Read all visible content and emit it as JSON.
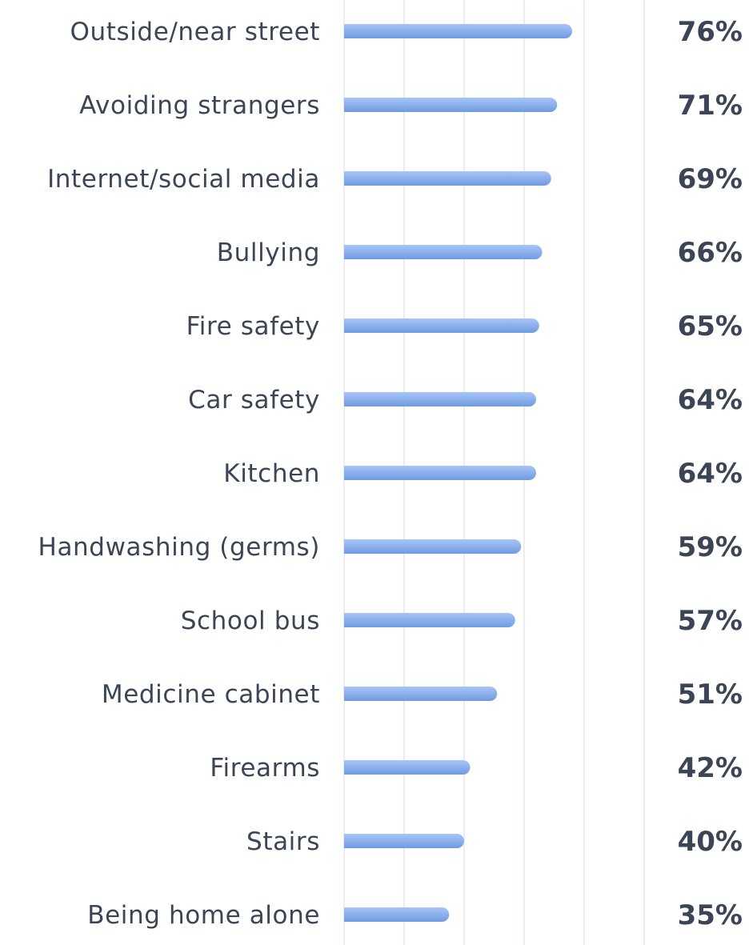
{
  "chart_data": {
    "type": "bar",
    "orientation": "horizontal",
    "categories": [
      "Outside/near street",
      "Avoiding strangers",
      "Internet/social media",
      "Bullying",
      "Fire safety",
      "Car safety",
      "Kitchen",
      "Handwashing (germs)",
      "School bus",
      "Medicine cabinet",
      "Firearms",
      "Stairs",
      "Being home alone"
    ],
    "values": [
      76,
      71,
      69,
      66,
      65,
      64,
      64,
      59,
      57,
      51,
      42,
      40,
      35
    ],
    "value_labels": [
      "76%",
      "71%",
      "69%",
      "66%",
      "65%",
      "64%",
      "64%",
      "59%",
      "57%",
      "51%",
      "42%",
      "40%",
      "35%"
    ],
    "value_unit": "%",
    "xlim": [
      0,
      100
    ],
    "grid": true,
    "legend": "none",
    "colors": {
      "bar_top": "#a9c4f5",
      "bar_bottom": "#6f9be3",
      "gridline": "#e3e9ef",
      "label_text": "#3b4556"
    }
  }
}
